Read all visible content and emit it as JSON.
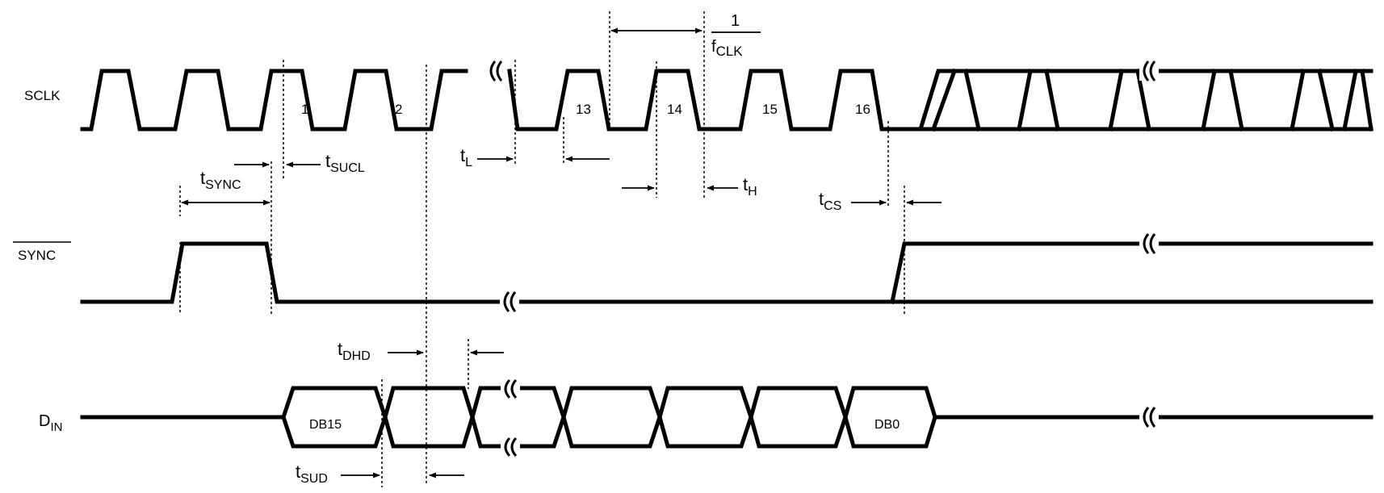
{
  "signals": {
    "sclk": "SCLK",
    "sync": "SYNC",
    "din_main": "D",
    "din_sub": "IN"
  },
  "clock_numbers": [
    "1",
    "2",
    "13",
    "14",
    "15",
    "16"
  ],
  "data_bits": {
    "first": "DB15",
    "last": "DB0"
  },
  "fclk": {
    "numerator": "1",
    "denominator_main": "f",
    "denominator_sub": "CLK"
  },
  "timing": {
    "tsync": {
      "main": "t",
      "sub": "SYNC"
    },
    "tsucl": {
      "main": "t",
      "sub": "SUCL"
    },
    "tl": {
      "main": "t",
      "sub": "L"
    },
    "th": {
      "main": "t",
      "sub": "H"
    },
    "tcs": {
      "main": "t",
      "sub": "CS"
    },
    "tdhd": {
      "main": "t",
      "sub": "DHD"
    },
    "tsud": {
      "main": "t",
      "sub": "SUD"
    }
  }
}
